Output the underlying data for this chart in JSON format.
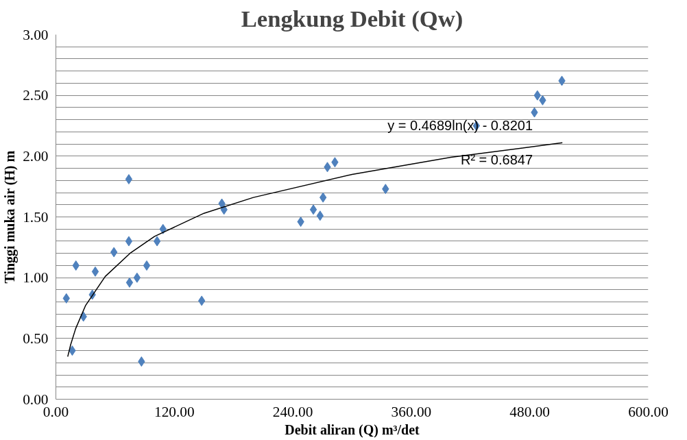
{
  "chart_data": {
    "type": "scatter",
    "title": "Lengkung Debit (Qw)",
    "xlabel": "Debit aliran (Q) m³/det",
    "ylabel": "Tinggi muka air (H) m",
    "series": [
      {
        "color": "#4f81bd",
        "marker": "diamond",
        "x": [
          10.6,
          16.6,
          20.3,
          27.9,
          36.9,
          39.9,
          58.8,
          73.9,
          73.9,
          74.6,
          82.2,
          86.7,
          92.0,
          102.5,
          108.5,
          147.7,
          168.1,
          170.3,
          248,
          260.8,
          267.6,
          270.6,
          275,
          282.6,
          333.9,
          425.9,
          484.7,
          487.7,
          493,
          512.5
        ],
        "values": [
          0.83,
          0.4,
          1.1,
          0.68,
          0.86,
          1.05,
          1.21,
          1.81,
          1.3,
          0.96,
          1.0,
          0.31,
          1.1,
          1.3,
          1.4,
          0.81,
          1.61,
          1.56,
          1.46,
          1.56,
          1.51,
          1.66,
          1.91,
          1.95,
          1.73,
          2.25,
          2.36,
          2.5,
          2.46,
          2.62
        ]
      },
      {
        "type": "line",
        "color": "#000000",
        "marker": "none",
        "x": [
          12,
          15,
          20,
          30,
          50,
          75,
          100,
          150,
          200,
          300,
          400,
          513
        ],
        "values": [
          0.35,
          0.45,
          0.58,
          0.77,
          1.01,
          1.2,
          1.34,
          1.53,
          1.66,
          1.85,
          1.99,
          2.11
        ]
      }
    ],
    "annotations": [
      "y = 0.4689ln(x) - 0.8201",
      "R² = 0.6847"
    ],
    "xlim": [
      0,
      600
    ],
    "xticks": [
      {
        "value": 0,
        "label": "0.00"
      },
      {
        "value": 120,
        "label": "120.00"
      },
      {
        "value": 240,
        "label": "240.00"
      },
      {
        "value": 360,
        "label": "360.00"
      },
      {
        "value": 480,
        "label": "480.00"
      },
      {
        "value": 600,
        "label": "600.00"
      }
    ],
    "ylim": [
      0,
      3
    ],
    "yticks": [
      {
        "value": 0,
        "label": "0.00"
      },
      {
        "value": 0.1,
        "label": null
      },
      {
        "value": 0.2,
        "label": null
      },
      {
        "value": 0.3,
        "label": null
      },
      {
        "value": 0.4,
        "label": null
      },
      {
        "value": 0.5,
        "label": "0.50"
      },
      {
        "value": 0.6,
        "label": null
      },
      {
        "value": 0.7,
        "label": null
      },
      {
        "value": 0.8,
        "label": null
      },
      {
        "value": 0.9,
        "label": null
      },
      {
        "value": 1.0,
        "label": "1.00"
      },
      {
        "value": 1.1,
        "label": null
      },
      {
        "value": 1.2,
        "label": null
      },
      {
        "value": 1.3,
        "label": null
      },
      {
        "value": 1.4,
        "label": null
      },
      {
        "value": 1.5,
        "label": "1.50"
      },
      {
        "value": 1.6,
        "label": null
      },
      {
        "value": 1.7,
        "label": null
      },
      {
        "value": 1.8,
        "label": null
      },
      {
        "value": 1.9,
        "label": null
      },
      {
        "value": 2.0,
        "label": "2.00"
      },
      {
        "value": 2.1,
        "label": null
      },
      {
        "value": 2.2,
        "label": null
      },
      {
        "value": 2.3,
        "label": null
      },
      {
        "value": 2.4,
        "label": null
      },
      {
        "value": 2.5,
        "label": "2.50"
      },
      {
        "value": 2.6,
        "label": null
      },
      {
        "value": 2.7,
        "label": null
      },
      {
        "value": 2.8,
        "label": null
      },
      {
        "value": 2.9,
        "label": null
      },
      {
        "value": 3.0,
        "label": "3.00"
      }
    ],
    "grid": "y"
  }
}
